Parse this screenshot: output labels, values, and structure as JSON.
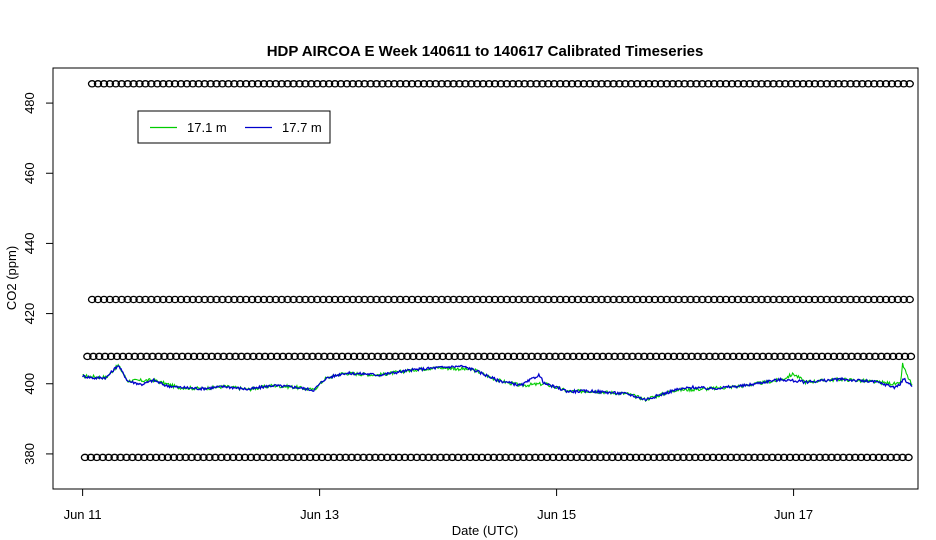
{
  "chart_data": {
    "type": "line",
    "title": "HDP AIRCOA E  Week 140611 to 140617  Calibrated Timeseries",
    "xlabel": "Date (UTC)",
    "ylabel": "CO2 (ppm)",
    "x_range_days": [
      -0.25,
      7.05
    ],
    "ylim": [
      370,
      490
    ],
    "x_ticks": [
      {
        "label": "Jun 11",
        "day": 0
      },
      {
        "label": "Jun 13",
        "day": 2
      },
      {
        "label": "Jun 15",
        "day": 4
      },
      {
        "label": "Jun 17",
        "day": 6
      }
    ],
    "y_ticks": [
      380,
      400,
      420,
      440,
      460,
      480
    ],
    "grid": false,
    "legend": {
      "position": "top-left",
      "entries": [
        {
          "label": "17.1 m",
          "color": "#00cc00"
        },
        {
          "label": "17.7 m",
          "color": "#0000cc"
        }
      ]
    },
    "series": [
      {
        "name": "17.1 m",
        "color": "#00cc00",
        "points": [
          [
            0.0,
            402.2
          ],
          [
            0.2,
            401.8
          ],
          [
            0.3,
            405.3
          ],
          [
            0.38,
            400.8
          ],
          [
            0.6,
            401.0
          ],
          [
            0.8,
            399.0
          ],
          [
            1.0,
            398.6
          ],
          [
            1.2,
            399.2
          ],
          [
            1.4,
            398.4
          ],
          [
            1.6,
            399.5
          ],
          [
            1.8,
            399.0
          ],
          [
            1.95,
            398.2
          ],
          [
            2.05,
            401.5
          ],
          [
            2.2,
            403.0
          ],
          [
            2.5,
            402.5
          ],
          [
            2.8,
            404.0
          ],
          [
            3.0,
            404.6
          ],
          [
            3.3,
            404.0
          ],
          [
            3.5,
            401.0
          ],
          [
            3.7,
            399.5
          ],
          [
            3.9,
            400.0
          ],
          [
            4.1,
            397.8
          ],
          [
            4.3,
            397.9
          ],
          [
            4.6,
            397.1
          ],
          [
            4.75,
            395.5
          ],
          [
            5.0,
            398.2
          ],
          [
            5.3,
            398.6
          ],
          [
            5.6,
            399.5
          ],
          [
            5.9,
            401.2
          ],
          [
            6.0,
            402.8
          ],
          [
            6.1,
            400.5
          ],
          [
            6.4,
            401.3
          ],
          [
            6.7,
            400.5
          ],
          [
            6.9,
            399.8
          ],
          [
            6.92,
            405.5
          ],
          [
            6.96,
            402.2
          ],
          [
            7.0,
            399.6
          ]
        ]
      },
      {
        "name": "17.7 m",
        "color": "#0000cc",
        "points": [
          [
            0.0,
            402.2
          ],
          [
            0.1,
            401.6
          ],
          [
            0.2,
            401.8
          ],
          [
            0.3,
            405.3
          ],
          [
            0.38,
            400.8
          ],
          [
            0.5,
            399.8
          ],
          [
            0.6,
            401.0
          ],
          [
            0.7,
            399.5
          ],
          [
            0.8,
            399.0
          ],
          [
            1.0,
            398.6
          ],
          [
            1.2,
            399.2
          ],
          [
            1.4,
            398.4
          ],
          [
            1.6,
            399.5
          ],
          [
            1.8,
            399.0
          ],
          [
            1.95,
            398.2
          ],
          [
            2.05,
            401.5
          ],
          [
            2.2,
            403.0
          ],
          [
            2.4,
            402.8
          ],
          [
            2.5,
            402.5
          ],
          [
            2.8,
            404.0
          ],
          [
            3.0,
            404.6
          ],
          [
            3.2,
            405.0
          ],
          [
            3.3,
            404.0
          ],
          [
            3.5,
            401.0
          ],
          [
            3.7,
            399.5
          ],
          [
            3.85,
            402.5
          ],
          [
            3.9,
            400.0
          ],
          [
            4.1,
            397.8
          ],
          [
            4.3,
            397.9
          ],
          [
            4.6,
            397.1
          ],
          [
            4.75,
            395.5
          ],
          [
            5.0,
            398.2
          ],
          [
            5.15,
            399.0
          ],
          [
            5.3,
            398.6
          ],
          [
            5.6,
            399.5
          ],
          [
            5.8,
            400.8
          ],
          [
            5.9,
            401.2
          ],
          [
            6.1,
            400.5
          ],
          [
            6.4,
            401.3
          ],
          [
            6.7,
            400.5
          ],
          [
            6.85,
            399.0
          ],
          [
            6.9,
            399.8
          ],
          [
            6.93,
            401.5
          ],
          [
            7.0,
            399.2
          ]
        ]
      }
    ],
    "reference_marker_rows": [
      {
        "y": 485.5,
        "start_day": 0.08
      },
      {
        "y": 424.0,
        "start_day": 0.08
      },
      {
        "y": 407.8,
        "start_day": 0.04
      },
      {
        "y": 379.0,
        "start_day": 0.02
      }
    ],
    "reference_marker_step_days": 0.05,
    "reference_marker_end_day": 7.0
  }
}
